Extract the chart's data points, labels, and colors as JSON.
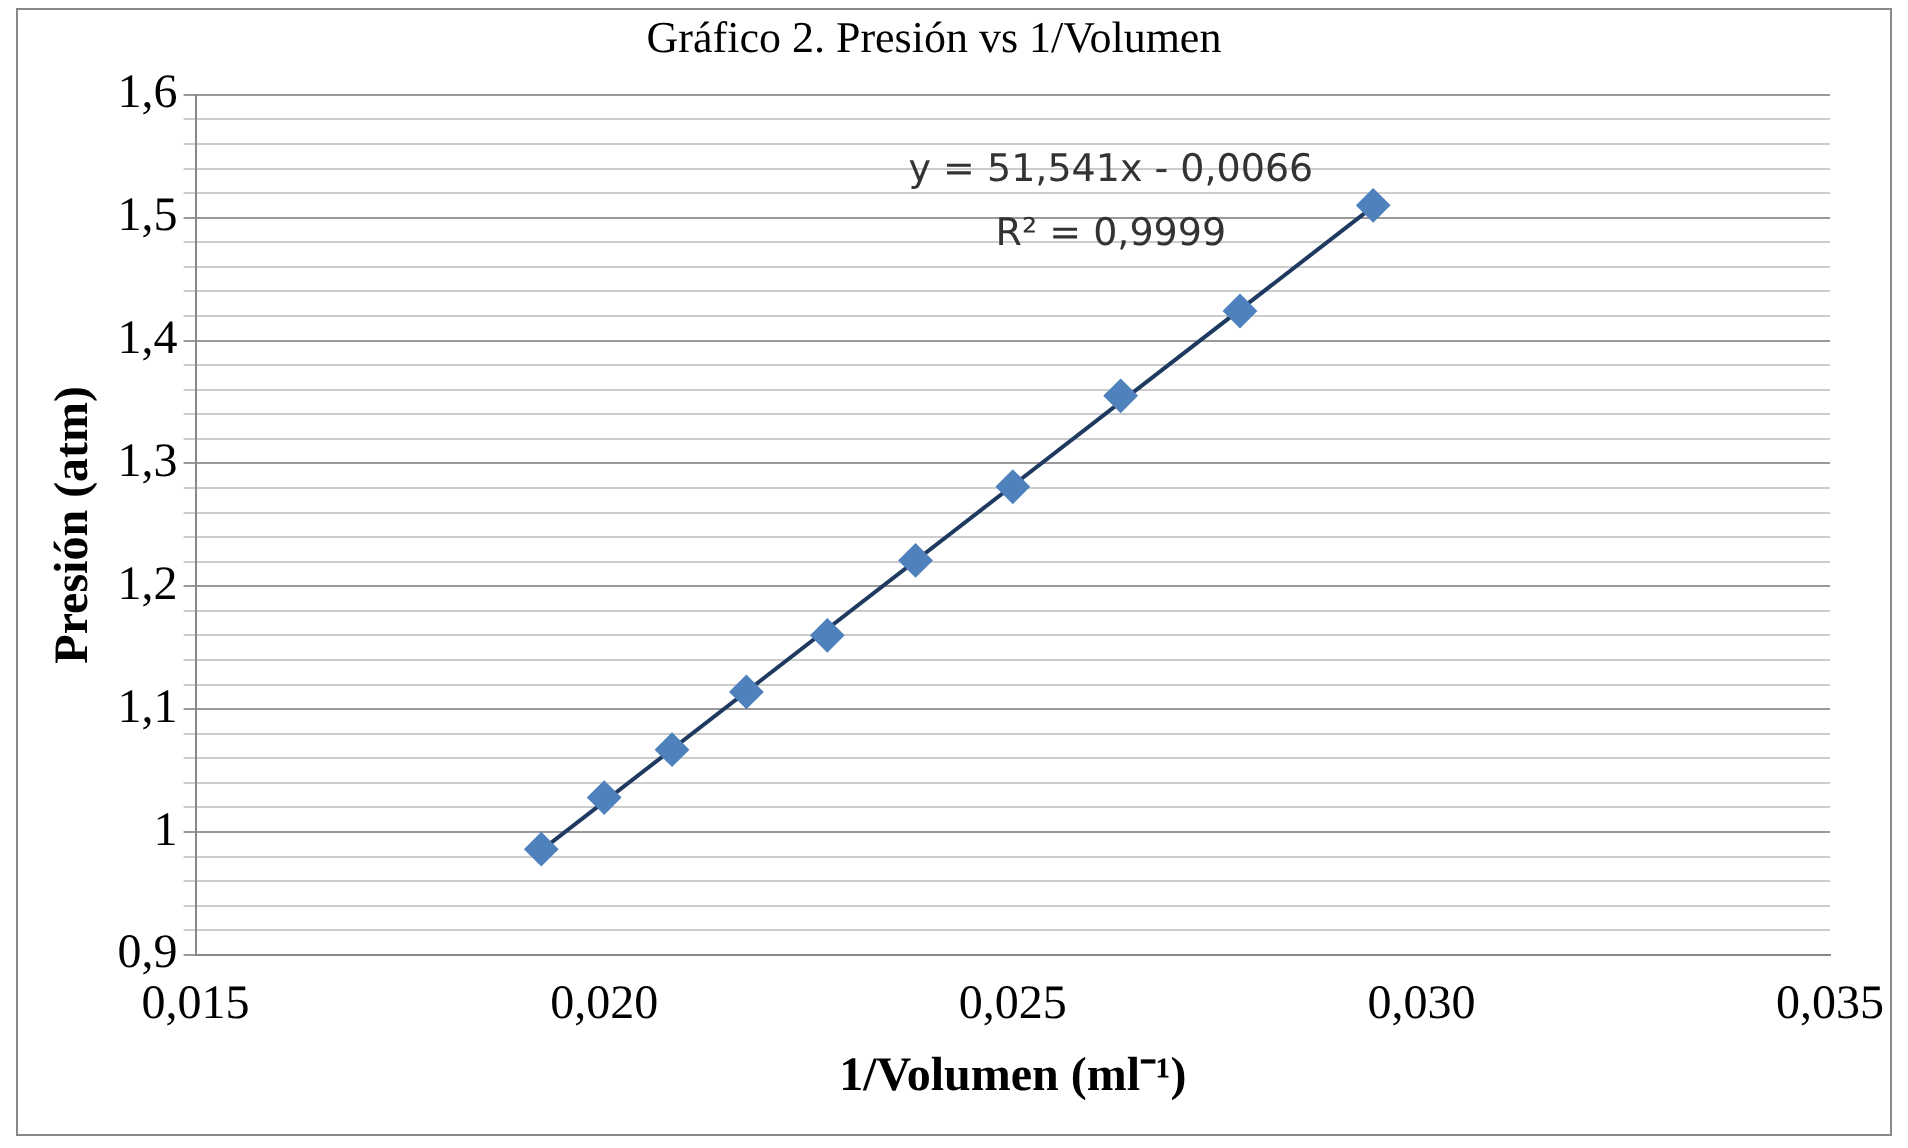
{
  "chart_data": {
    "type": "scatter",
    "title": "Gráfico 2. Presión vs 1/Volumen",
    "xlabel": "1/Volumen (ml⁻¹)",
    "ylabel": "Presión (atm)",
    "annotations": [
      "y = 51,541x - 0,0066",
      "R² = 0,9999"
    ],
    "series": [
      {
        "type": "scatter",
        "color": "#4f81bd",
        "marker": "diamond",
        "x": [
          0.01923,
          0.02,
          0.02083,
          0.02174,
          0.02273,
          0.02381,
          0.025,
          0.02632,
          0.02778,
          0.02941
        ],
        "values": [
          0.986,
          1.028,
          1.067,
          1.114,
          1.16,
          1.221,
          1.281,
          1.355,
          1.424,
          1.51
        ]
      },
      {
        "type": "line",
        "color": "#1f3a60",
        "marker": "none",
        "x": [
          0.01923,
          0.02941
        ],
        "values": [
          0.985,
          1.509
        ]
      }
    ],
    "xlim": [
      0.015,
      0.035
    ],
    "xticks": [
      {
        "value": 0.015,
        "label": "0,015"
      },
      {
        "value": 0.02,
        "label": "0,020"
      },
      {
        "value": 0.025,
        "label": "0,025"
      },
      {
        "value": 0.03,
        "label": "0,030"
      },
      {
        "value": 0.035,
        "label": "0,035"
      }
    ],
    "ylim": [
      0.9,
      1.6
    ],
    "yticks": [
      {
        "value": 0.9,
        "label": "0,9"
      },
      {
        "value": 0.92,
        "label": null
      },
      {
        "value": 0.94,
        "label": null
      },
      {
        "value": 0.96,
        "label": null
      },
      {
        "value": 0.98,
        "label": null
      },
      {
        "value": 1,
        "label": "1"
      },
      {
        "value": 1.02,
        "label": null
      },
      {
        "value": 1.04,
        "label": null
      },
      {
        "value": 1.06,
        "label": null
      },
      {
        "value": 1.08,
        "label": null
      },
      {
        "value": 1.1,
        "label": "1,1"
      },
      {
        "value": 1.12,
        "label": null
      },
      {
        "value": 1.14,
        "label": null
      },
      {
        "value": 1.16,
        "label": null
      },
      {
        "value": 1.18,
        "label": null
      },
      {
        "value": 1.2,
        "label": "1,2"
      },
      {
        "value": 1.22,
        "label": null
      },
      {
        "value": 1.24,
        "label": null
      },
      {
        "value": 1.26,
        "label": null
      },
      {
        "value": 1.28,
        "label": null
      },
      {
        "value": 1.3,
        "label": "1,3"
      },
      {
        "value": 1.32,
        "label": null
      },
      {
        "value": 1.34,
        "label": null
      },
      {
        "value": 1.36,
        "label": null
      },
      {
        "value": 1.38,
        "label": null
      },
      {
        "value": 1.4,
        "label": "1,4"
      },
      {
        "value": 1.42,
        "label": null
      },
      {
        "value": 1.44,
        "label": null
      },
      {
        "value": 1.46,
        "label": null
      },
      {
        "value": 1.48,
        "label": null
      },
      {
        "value": 1.5,
        "label": "1,5"
      },
      {
        "value": 1.52,
        "label": null
      },
      {
        "value": 1.54,
        "label": null
      },
      {
        "value": 1.56,
        "label": null
      },
      {
        "value": 1.58,
        "label": null
      },
      {
        "value": 1.6,
        "label": "1,6"
      }
    ],
    "grid": "y",
    "legend": false
  }
}
